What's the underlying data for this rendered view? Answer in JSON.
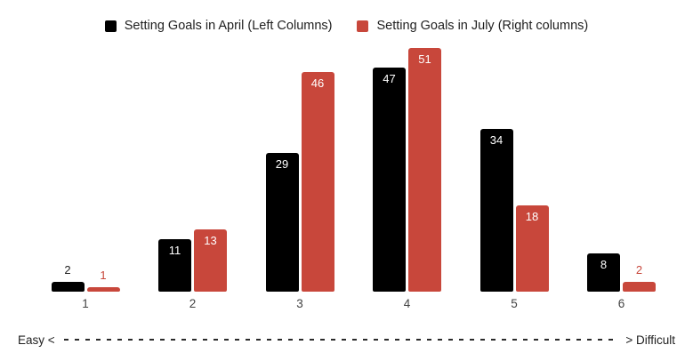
{
  "chart_data": {
    "type": "bar",
    "title": "",
    "categories": [
      "1",
      "2",
      "3",
      "4",
      "5",
      "6"
    ],
    "series": [
      {
        "name": "Setting Goals in April (Left Columns)",
        "color": "#000000",
        "values": [
          2,
          11,
          29,
          47,
          34,
          8
        ]
      },
      {
        "name": "Setting Goals in July (Right columns)",
        "color": "#c8473b",
        "values": [
          1,
          13,
          46,
          51,
          18,
          2
        ]
      }
    ],
    "ylim": [
      0,
      52
    ],
    "grid": false,
    "legend_position": "top",
    "value_labels": "on_bars",
    "value_label_color_inside": "#ffffff",
    "outside_label_color_april": "#212121",
    "x_axis_note": {
      "left": "Easy <",
      "right": "> Difficult"
    }
  }
}
